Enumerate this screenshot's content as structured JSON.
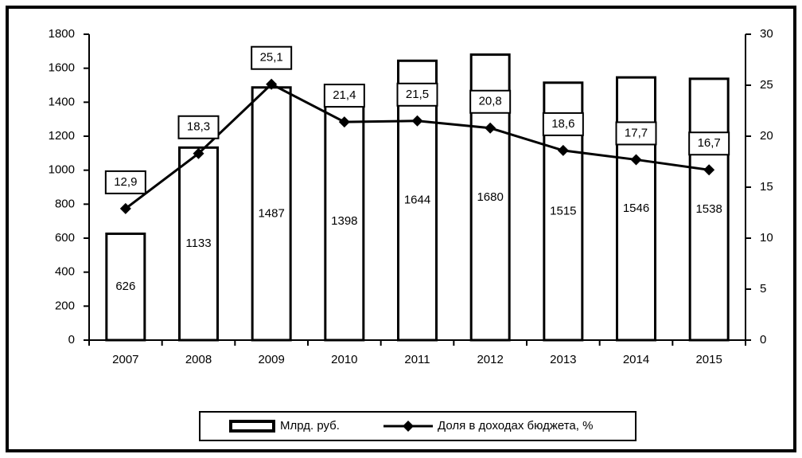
{
  "chart_data": {
    "type": "bar_line",
    "categories": [
      "2007",
      "2008",
      "2009",
      "2010",
      "2011",
      "2012",
      "2013",
      "2014",
      "2015"
    ],
    "series": [
      {
        "name": "Млрд. руб.",
        "type": "bar",
        "color": "#ffffff",
        "values": [
          626,
          1133,
          1487,
          1398,
          1644,
          1680,
          1515,
          1546,
          1538
        ]
      },
      {
        "name": "Доля в доходах бюджета, %",
        "type": "line",
        "axis": "y2",
        "color": "#000000",
        "values": [
          12.9,
          18.3,
          25.1,
          21.4,
          21.5,
          20.8,
          18.6,
          17.7,
          16.7
        ],
        "value_labels": [
          "12,9",
          "18,3",
          "25,1",
          "21,4",
          "21,5",
          "20,8",
          "18,6",
          "17,7",
          "16,7"
        ]
      }
    ],
    "ylim": [
      0,
      1800
    ],
    "yticks": [
      0,
      200,
      400,
      600,
      800,
      1000,
      1200,
      1400,
      1600,
      1800
    ],
    "y2lim": [
      0,
      30
    ],
    "y2ticks": [
      0,
      5,
      10,
      15,
      20,
      25,
      30
    ],
    "legend": "bottom"
  }
}
